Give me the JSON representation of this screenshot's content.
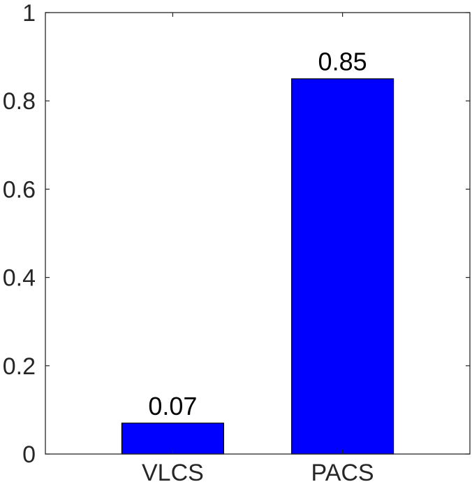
{
  "chart_data": {
    "type": "bar",
    "categories": [
      "VLCS",
      "PACS"
    ],
    "values": [
      0.07,
      0.85
    ],
    "data_labels": [
      "0.07",
      "0.85"
    ],
    "title": "",
    "xlabel": "",
    "ylabel": "",
    "ylim": [
      0,
      1
    ],
    "yticks": [
      0,
      0.2,
      0.4,
      0.6,
      0.8,
      1
    ],
    "ytick_labels": [
      "0",
      "0.2",
      "0.4",
      "0.6",
      "0.8",
      "1"
    ],
    "grid": false,
    "legend": "none",
    "colors": {
      "bar": "#0000ff",
      "bar_edge": "#000000",
      "axis": "#262626"
    }
  }
}
